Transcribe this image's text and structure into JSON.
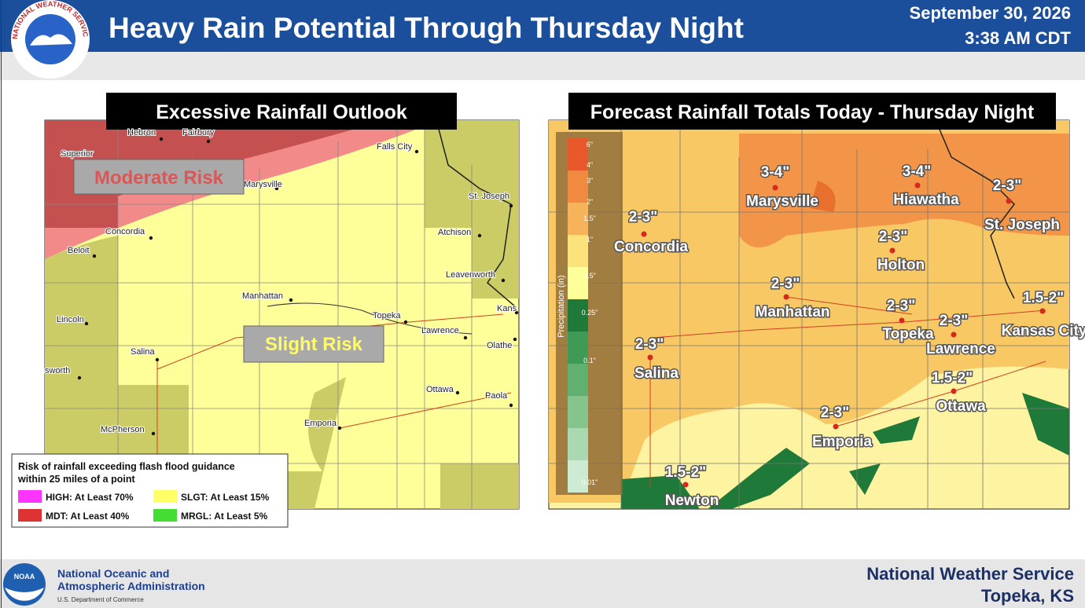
{
  "header": {
    "logo_text": "NATIONAL WEATHER SERVICE",
    "title": "Heavy Rain Potential Through Thursday Night",
    "date": "September 30, 2026",
    "time": "3:38 AM CDT"
  },
  "left_panel": {
    "title": "Excessive Rainfall Outlook",
    "risk_labels": [
      "Moderate Risk",
      "Slight Risk"
    ],
    "cities": [
      "Hebron",
      "Fairbury",
      "Superior",
      "Falls City",
      "Marysville",
      "St. Joseph",
      "Concordia",
      "Atchison",
      "Beloit",
      "Leavenworth",
      "Manhattan",
      "Kans",
      "Lincoln",
      "Topeka",
      "Lawrence",
      "Olathe",
      "Salina",
      "sworth",
      "Ottawa",
      "Paola",
      "McPherson",
      "Emporia"
    ],
    "legend": {
      "title": "Risk of rainfall exceeding flash flood guidance within 25 miles of a point",
      "items": [
        {
          "label": "HIGH: At Least 70%",
          "color": "#ff33ff"
        },
        {
          "label": "SLGT: At Least 15%",
          "color": "#ffff66"
        },
        {
          "label": "MDT: At Least 40%",
          "color": "#dd3333"
        },
        {
          "label": "MRGL: At Least 5%",
          "color": "#44dd33"
        }
      ]
    }
  },
  "right_panel": {
    "title": "Forecast Rainfall Totals Today - Thursday Night",
    "colorbar": {
      "label": "Precipitation (in)",
      "ticks": [
        "6\"",
        "4\"",
        "3\"",
        "2\"",
        "1.5\"",
        "1\"",
        "0.5\"",
        "0.25\"",
        "0.1\"",
        "0.01\""
      ]
    },
    "cities": [
      {
        "name": "Concordia",
        "amount": "2-3\""
      },
      {
        "name": "Marysville",
        "amount": "3-4\""
      },
      {
        "name": "Hiawatha",
        "amount": "3-4\""
      },
      {
        "name": "St. Joseph",
        "amount": "2-3\""
      },
      {
        "name": "Holton",
        "amount": "2-3\""
      },
      {
        "name": "Manhattan",
        "amount": "2-3\""
      },
      {
        "name": "Topeka",
        "amount": "2-3\""
      },
      {
        "name": "Lawrence",
        "amount": "2-3\""
      },
      {
        "name": "Kansas City",
        "amount": "1.5-2\""
      },
      {
        "name": "Salina",
        "amount": "2-3\""
      },
      {
        "name": "Ottawa",
        "amount": "1.5-2\""
      },
      {
        "name": "Emporia",
        "amount": "2-3\""
      },
      {
        "name": "Newton",
        "amount": "1.5-2\""
      }
    ]
  },
  "footer": {
    "noaa_logo": "NOAA",
    "noaa_line1": "National Oceanic and",
    "noaa_line2": "Atmospheric Administration",
    "department": "U.S. Department of Commerce",
    "office_line1": "National Weather Service",
    "office_line2": "Topeka, KS"
  }
}
